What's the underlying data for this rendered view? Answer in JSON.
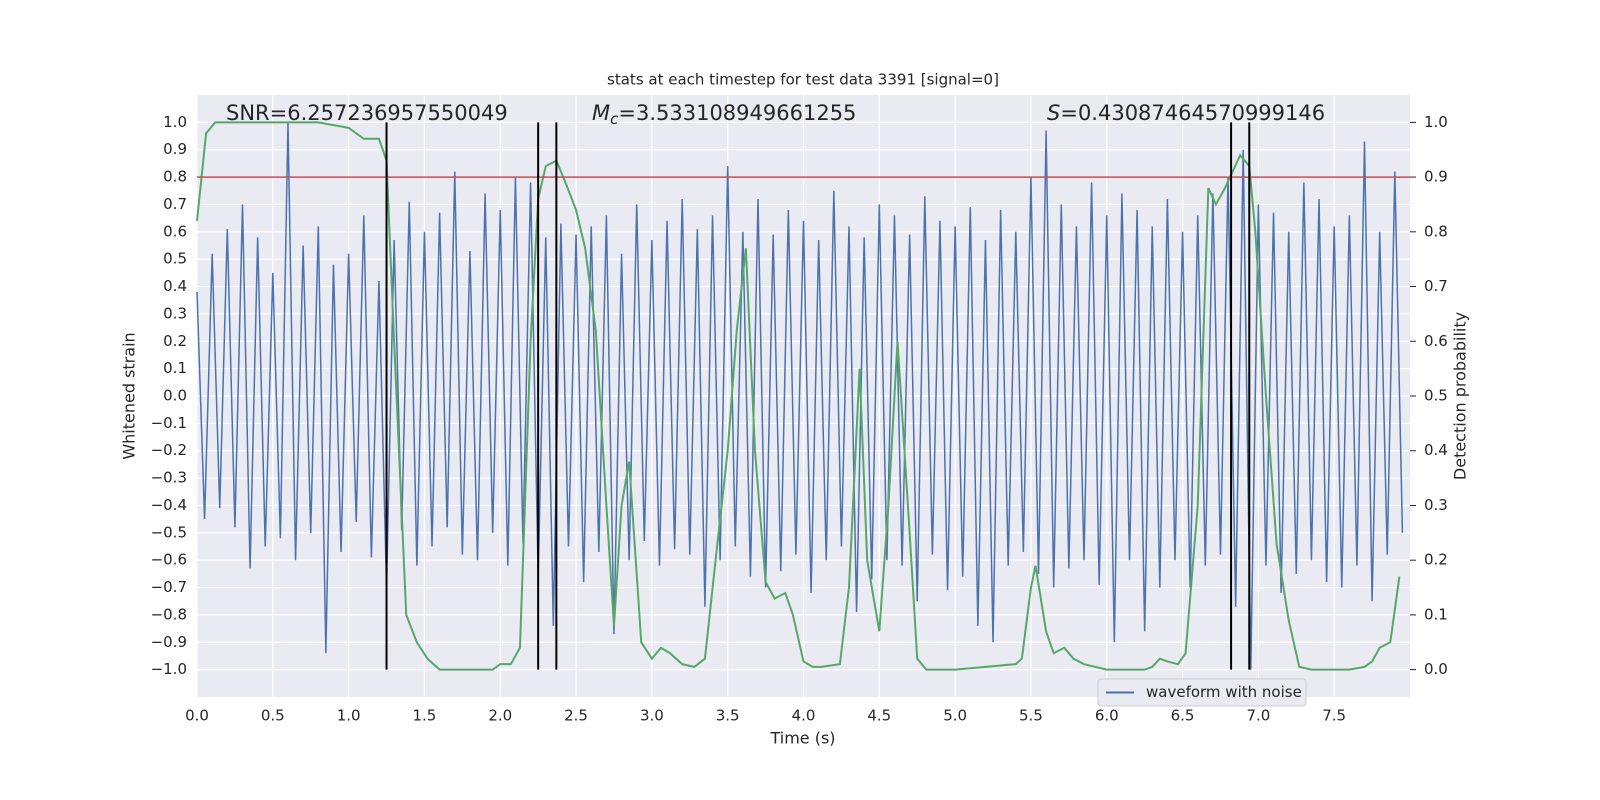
{
  "chart_data": {
    "type": "line",
    "title": "stats at each timestep for test data 3391 [signal=0]",
    "xlabel": "Time (s)",
    "ylabel": "Whitened strain",
    "y2label": "Detection probability",
    "annotations": [
      {
        "text": "SNR=6.257236957550049"
      },
      {
        "symbol": "M",
        "subscript": "c",
        "text": "=3.533108949661255"
      },
      {
        "symbol": "S",
        "text": "=0.43087464570999146"
      }
    ],
    "xlim": [
      0,
      8
    ],
    "xticks": [
      {
        "value": 0,
        "label": "0.0"
      },
      0.5,
      {
        "value": 1,
        "label": "1.0"
      },
      1.5,
      {
        "value": 2,
        "label": "2.0"
      },
      2.5,
      {
        "value": 3,
        "label": "3.0"
      },
      3.5,
      {
        "value": 4,
        "label": "4.0"
      },
      4.5,
      {
        "value": 5,
        "label": "5.0"
      },
      5.5,
      {
        "value": 6,
        "label": "6.0"
      },
      6.5,
      {
        "value": 7,
        "label": "7.0"
      },
      7.5
    ],
    "ylim": [
      -1.1,
      1.1
    ],
    "yticks": [
      {
        "value": -1,
        "label": "−1.0"
      },
      {
        "value": -0.9,
        "label": "−0.9"
      },
      {
        "value": -0.8,
        "label": "−0.8"
      },
      {
        "value": -0.7,
        "label": "−0.7"
      },
      {
        "value": -0.6,
        "label": "−0.6"
      },
      {
        "value": -0.5,
        "label": "−0.5"
      },
      {
        "value": -0.4,
        "label": "−0.4"
      },
      {
        "value": -0.3,
        "label": "−0.3"
      },
      {
        "value": -0.2,
        "label": "−0.2"
      },
      {
        "value": -0.1,
        "label": "−0.1"
      },
      {
        "value": 0,
        "label": "0.0"
      },
      0.1,
      0.2,
      0.3,
      0.4,
      0.5,
      0.6,
      0.7,
      0.8,
      0.9,
      {
        "value": 1,
        "label": "1.0"
      }
    ],
    "y2lim": [
      -0.05,
      1.05
    ],
    "y2ticks": [
      {
        "value": 0,
        "label": "0.0"
      },
      0.1,
      0.2,
      0.3,
      0.4,
      0.5,
      0.6,
      0.7,
      0.8,
      0.9,
      {
        "value": 1,
        "label": "1.0"
      }
    ],
    "grid": true,
    "legend": "lower right",
    "series": [
      {
        "name": "waveform with noise",
        "color": "#4c72b0",
        "x": [
          0,
          0.05,
          0.1,
          0.15,
          0.2,
          0.25,
          0.3,
          0.35,
          0.4,
          0.45,
          0.5,
          0.55,
          0.6,
          0.65,
          0.7,
          0.75,
          0.8,
          0.85,
          0.9,
          0.95,
          1,
          1.05,
          1.1,
          1.15,
          1.2,
          1.25,
          1.3,
          1.35,
          1.4,
          1.45,
          1.5,
          1.55,
          1.6,
          1.65,
          1.7,
          1.75,
          1.8,
          1.85,
          1.9,
          1.95,
          2,
          2.05,
          2.1,
          2.15,
          2.2,
          2.25,
          2.3,
          2.35,
          2.4,
          2.45,
          2.5,
          2.55,
          2.6,
          2.65,
          2.7,
          2.75,
          2.8,
          2.85,
          2.9,
          2.95,
          3,
          3.05,
          3.1,
          3.15,
          3.2,
          3.25,
          3.3,
          3.35,
          3.4,
          3.45,
          3.5,
          3.55,
          3.6,
          3.65,
          3.7,
          3.75,
          3.8,
          3.85,
          3.9,
          3.95,
          4,
          4.05,
          4.1,
          4.15,
          4.2,
          4.25,
          4.3,
          4.35,
          4.4,
          4.45,
          4.5,
          4.55,
          4.6,
          4.65,
          4.7,
          4.75,
          4.8,
          4.85,
          4.9,
          4.95,
          5,
          5.05,
          5.1,
          5.15,
          5.2,
          5.25,
          5.3,
          5.35,
          5.4,
          5.45,
          5.5,
          5.55,
          5.6,
          5.65,
          5.7,
          5.75,
          5.8,
          5.85,
          5.9,
          5.95,
          6,
          6.05,
          6.1,
          6.15,
          6.2,
          6.25,
          6.3,
          6.35,
          6.4,
          6.45,
          6.5,
          6.55,
          6.6,
          6.65,
          6.7,
          6.75,
          6.8,
          6.85,
          6.9,
          6.95,
          7,
          7.05,
          7.1,
          7.15,
          7.2,
          7.25,
          7.3,
          7.35,
          7.4,
          7.45,
          7.5,
          7.55,
          7.6,
          7.65,
          7.7,
          7.75,
          7.8,
          7.85,
          7.9,
          7.95
        ],
        "values": [
          0.38,
          -0.45,
          0.52,
          -0.41,
          0.61,
          -0.48,
          0.7,
          -0.63,
          0.58,
          -0.55,
          0.45,
          -0.52,
          1.0,
          -0.6,
          0.55,
          -0.5,
          0.62,
          -0.94,
          0.48,
          -0.57,
          0.52,
          -0.46,
          0.66,
          -0.59,
          0.42,
          -0.7,
          0.57,
          -0.49,
          0.71,
          -0.62,
          0.6,
          -0.55,
          0.67,
          -0.48,
          0.82,
          -0.58,
          0.53,
          -0.6,
          0.74,
          -0.5,
          0.68,
          -0.62,
          0.8,
          -0.54,
          0.78,
          -0.66,
          0.58,
          -0.84,
          0.63,
          -0.55,
          0.59,
          -0.68,
          0.62,
          -0.57,
          0.66,
          -0.87,
          0.52,
          -0.6,
          0.7,
          -0.53,
          0.57,
          -0.62,
          0.64,
          -0.56,
          0.72,
          -0.58,
          0.61,
          -0.77,
          0.66,
          -0.6,
          0.84,
          -0.55,
          0.6,
          -0.66,
          0.72,
          -0.7,
          0.59,
          -0.64,
          0.68,
          -0.58,
          0.64,
          -0.72,
          0.57,
          -0.6,
          0.75,
          -0.55,
          0.62,
          -0.79,
          0.58,
          -0.67,
          0.7,
          -0.6,
          0.66,
          -0.62,
          0.59,
          -0.75,
          0.73,
          -0.58,
          0.64,
          -0.71,
          0.62,
          -0.66,
          0.69,
          -0.84,
          0.57,
          -0.9,
          0.68,
          -0.62,
          0.6,
          -0.57,
          0.8,
          -0.65,
          0.97,
          -0.7,
          0.7,
          -0.63,
          0.62,
          -0.6,
          0.78,
          -0.69,
          0.66,
          -0.9,
          0.74,
          -0.6,
          0.68,
          -0.86,
          0.62,
          -0.7,
          0.72,
          -0.6,
          0.6,
          -0.7,
          0.66,
          -0.62,
          0.74,
          -0.58,
          0.8,
          -0.77,
          0.9,
          -1.0,
          0.7,
          -0.62,
          0.67,
          -0.72,
          0.6,
          -0.65,
          0.78,
          -0.6,
          0.72,
          -0.68,
          0.62,
          -0.7,
          0.66,
          -0.62,
          0.93,
          -0.75,
          0.6,
          -0.58,
          0.82,
          -0.5
        ]
      },
      {
        "color": "#55a868",
        "axis": "y2",
        "x": [
          0,
          0.06,
          0.12,
          0.2,
          0.4,
          0.6,
          0.8,
          1.0,
          1.1,
          1.2,
          1.25,
          1.3,
          1.38,
          1.45,
          1.52,
          1.6,
          1.8,
          1.95,
          2.0,
          2.07,
          2.13,
          2.2,
          2.25,
          2.3,
          2.37,
          2.43,
          2.5,
          2.56,
          2.63,
          2.7,
          2.75,
          2.8,
          2.85,
          2.93,
          3.0,
          3.06,
          3.12,
          3.2,
          3.28,
          3.35,
          3.42,
          3.5,
          3.56,
          3.62,
          3.68,
          3.75,
          3.81,
          3.88,
          3.93,
          4.0,
          4.06,
          4.12,
          4.24,
          4.3,
          4.37,
          4.42,
          4.5,
          4.56,
          4.62,
          4.7,
          4.75,
          4.81,
          5.0,
          5.4,
          5.44,
          5.5,
          5.53,
          5.6,
          5.65,
          5.72,
          5.78,
          5.85,
          6.0,
          6.25,
          6.3,
          6.35,
          6.4,
          6.47,
          6.52,
          6.6,
          6.67,
          6.72,
          6.78,
          6.88,
          6.94,
          6.98,
          7.05,
          7.12,
          7.2,
          7.27,
          7.35,
          7.6,
          7.7,
          7.75,
          7.8,
          7.87,
          7.93
        ],
        "values": [
          0.82,
          0.98,
          1.0,
          1.0,
          1.0,
          1.0,
          1.0,
          0.99,
          0.97,
          0.97,
          0.93,
          0.6,
          0.1,
          0.05,
          0.02,
          0.0,
          0.0,
          0.0,
          0.01,
          0.01,
          0.04,
          0.6,
          0.86,
          0.92,
          0.93,
          0.89,
          0.84,
          0.77,
          0.62,
          0.3,
          0.08,
          0.3,
          0.38,
          0.05,
          0.02,
          0.04,
          0.03,
          0.01,
          0.005,
          0.02,
          0.2,
          0.4,
          0.62,
          0.77,
          0.4,
          0.16,
          0.13,
          0.14,
          0.1,
          0.015,
          0.005,
          0.005,
          0.01,
          0.15,
          0.55,
          0.2,
          0.07,
          0.3,
          0.6,
          0.25,
          0.02,
          0.0,
          0.0,
          0.01,
          0.02,
          0.15,
          0.19,
          0.07,
          0.03,
          0.04,
          0.02,
          0.01,
          0.0,
          0.0,
          0.005,
          0.02,
          0.015,
          0.01,
          0.03,
          0.3,
          0.88,
          0.85,
          0.88,
          0.94,
          0.92,
          0.8,
          0.5,
          0.23,
          0.09,
          0.005,
          0.0,
          0.0,
          0.005,
          0.015,
          0.04,
          0.05,
          0.17
        ]
      }
    ],
    "hline": {
      "y": 0.8,
      "color": "#c44e52"
    },
    "vlines": {
      "x": [
        1.25,
        2.25,
        2.37,
        6.82,
        6.94
      ],
      "ymin": -1,
      "ymax": 1,
      "color": "#000000"
    }
  }
}
